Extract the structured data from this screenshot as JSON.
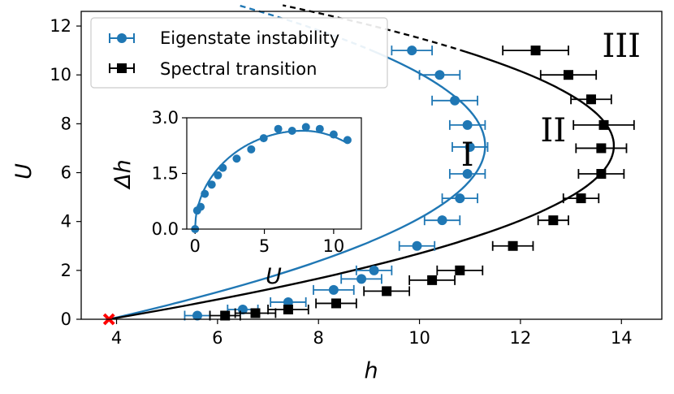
{
  "chart_data": [
    {
      "type": "scatter",
      "xlabel": "h",
      "ylabel": "U",
      "xlim": [
        3.3,
        14.8
      ],
      "ylim": [
        0,
        12.6
      ],
      "xticks": [
        4,
        6,
        8,
        10,
        12,
        14
      ],
      "yticks": [
        0,
        2,
        4,
        6,
        8,
        10,
        12
      ],
      "grid": false,
      "legend_position": "top-left",
      "legend": [
        "Eigenstate instability",
        "Spectral transition"
      ],
      "region_labels": [
        {
          "text": "I",
          "x": 10.95,
          "y": 6.75
        },
        {
          "text": "II",
          "x": 12.65,
          "y": 7.75
        },
        {
          "text": "III",
          "x": 14.0,
          "y": 11.2
        }
      ],
      "series": [
        {
          "name": "Eigenstate instability",
          "color": "#1f77b4",
          "marker": "circle",
          "points": [
            {
              "x": 5.6,
              "y": 0.15,
              "xerr": 0.25
            },
            {
              "x": 6.5,
              "y": 0.4,
              "xerr": 0.3
            },
            {
              "x": 7.4,
              "y": 0.7,
              "xerr": 0.35
            },
            {
              "x": 8.3,
              "y": 1.2,
              "xerr": 0.4
            },
            {
              "x": 8.85,
              "y": 1.65,
              "xerr": 0.4
            },
            {
              "x": 9.1,
              "y": 2.0,
              "xerr": 0.35
            },
            {
              "x": 9.95,
              "y": 3.0,
              "xerr": 0.35
            },
            {
              "x": 10.45,
              "y": 4.05,
              "xerr": 0.35
            },
            {
              "x": 10.8,
              "y": 4.95,
              "xerr": 0.35
            },
            {
              "x": 10.95,
              "y": 5.95,
              "xerr": 0.35
            },
            {
              "x": 11.0,
              "y": 7.05,
              "xerr": 0.35
            },
            {
              "x": 10.95,
              "y": 7.95,
              "xerr": 0.35
            },
            {
              "x": 10.7,
              "y": 8.95,
              "xerr": 0.45
            },
            {
              "x": 10.4,
              "y": 10.0,
              "xerr": 0.4
            },
            {
              "x": 9.85,
              "y": 11.0,
              "xerr": 0.4
            }
          ],
          "fit_curve": {
            "h_min": 3.85,
            "h_max": 11.3,
            "U_at_h_max": 7.1,
            "dashed_above_U": 11.0
          }
        },
        {
          "name": "Spectral transition",
          "color": "#000000",
          "marker": "square",
          "points": [
            {
              "x": 6.15,
              "y": 0.15,
              "xerr": 0.3
            },
            {
              "x": 6.75,
              "y": 0.25,
              "xerr": 0.4
            },
            {
              "x": 7.4,
              "y": 0.4,
              "xerr": 0.4
            },
            {
              "x": 8.35,
              "y": 0.65,
              "xerr": 0.4
            },
            {
              "x": 9.35,
              "y": 1.15,
              "xerr": 0.45
            },
            {
              "x": 10.25,
              "y": 1.6,
              "xerr": 0.45
            },
            {
              "x": 10.8,
              "y": 2.0,
              "xerr": 0.45
            },
            {
              "x": 11.85,
              "y": 3.0,
              "xerr": 0.4
            },
            {
              "x": 12.65,
              "y": 4.05,
              "xerr": 0.3
            },
            {
              "x": 13.2,
              "y": 4.95,
              "xerr": 0.35
            },
            {
              "x": 13.6,
              "y": 5.95,
              "xerr": 0.45
            },
            {
              "x": 13.6,
              "y": 7.0,
              "xerr": 0.5
            },
            {
              "x": 13.65,
              "y": 7.95,
              "xerr": 0.6
            },
            {
              "x": 13.4,
              "y": 9.0,
              "xerr": 0.4
            },
            {
              "x": 12.95,
              "y": 10.0,
              "xerr": 0.55
            },
            {
              "x": 12.3,
              "y": 11.0,
              "xerr": 0.65
            }
          ],
          "fit_curve": {
            "h_min": 3.85,
            "h_max": 13.85,
            "U_at_h_max": 7.1,
            "dashed_above_U": 11.0
          }
        },
        {
          "name": "",
          "color": "#ff0000",
          "marker": "x",
          "points": [
            {
              "x": 3.85,
              "y": 0.0
            }
          ]
        }
      ]
    },
    {
      "type": "scatter",
      "xlabel": "U",
      "ylabel": "Δh",
      "xlim": [
        -0.6,
        12.0
      ],
      "ylim": [
        0.0,
        3.0
      ],
      "xticks": [
        0,
        5,
        10
      ],
      "yticks": [
        0.0,
        1.5,
        3.0
      ],
      "ytick_labels": [
        "0.0",
        "1.5",
        "3.0"
      ],
      "color": "#1f77b4",
      "points": [
        {
          "x": 0.0,
          "y": 0.0
        },
        {
          "x": 0.15,
          "y": 0.5
        },
        {
          "x": 0.4,
          "y": 0.6
        },
        {
          "x": 0.7,
          "y": 0.95
        },
        {
          "x": 1.2,
          "y": 1.2
        },
        {
          "x": 1.65,
          "y": 1.45
        },
        {
          "x": 2.0,
          "y": 1.65
        },
        {
          "x": 3.0,
          "y": 1.9
        },
        {
          "x": 4.05,
          "y": 2.15
        },
        {
          "x": 4.95,
          "y": 2.45
        },
        {
          "x": 6.0,
          "y": 2.7
        },
        {
          "x": 7.0,
          "y": 2.65
        },
        {
          "x": 8.0,
          "y": 2.75
        },
        {
          "x": 9.0,
          "y": 2.7
        },
        {
          "x": 10.0,
          "y": 2.55
        },
        {
          "x": 11.0,
          "y": 2.4
        }
      ],
      "fit_curve": {
        "U_max": 11.0,
        "peak_U": 7.8,
        "peak_value": 2.65
      }
    }
  ]
}
